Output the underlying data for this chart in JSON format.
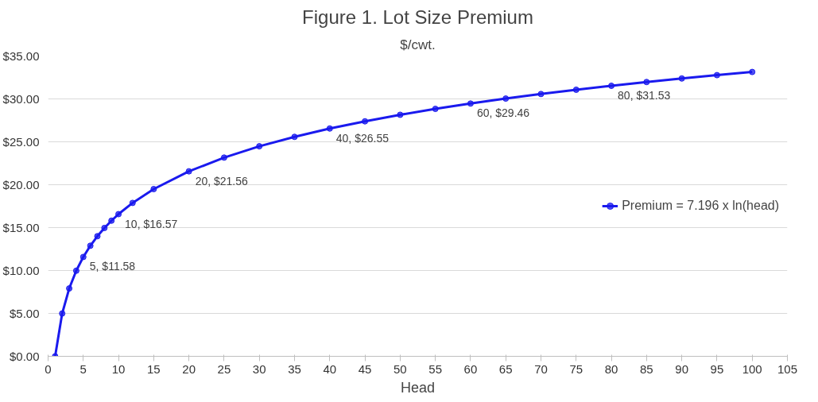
{
  "chart_data": {
    "type": "line",
    "title": "Figure 1. Lot Size Premium",
    "subtitle": "$/cwt.",
    "xlabel": "Head",
    "x": [
      1,
      2,
      3,
      4,
      5,
      6,
      7,
      8,
      9,
      10,
      12,
      15,
      20,
      25,
      30,
      35,
      40,
      45,
      50,
      55,
      60,
      65,
      70,
      75,
      80,
      85,
      90,
      95,
      100
    ],
    "series": [
      {
        "name": "Premium = 7.196 x ln(head)",
        "color": "#1a1aee",
        "values": [
          0,
          4.99,
          7.91,
          9.98,
          11.58,
          12.89,
          14.0,
          14.96,
          15.81,
          16.57,
          17.88,
          19.49,
          21.56,
          23.16,
          24.48,
          25.58,
          26.55,
          27.39,
          28.15,
          28.84,
          29.46,
          30.04,
          30.57,
          31.07,
          31.53,
          31.97,
          32.38,
          32.77,
          33.14
        ],
        "value_labels": [
          null,
          null,
          null,
          null,
          "5, $11.58",
          null,
          null,
          null,
          null,
          "10, $16.57",
          null,
          null,
          "20, $21.56",
          null,
          null,
          null,
          "40, $26.55",
          null,
          null,
          null,
          "60, $29.46",
          null,
          null,
          null,
          "80, $31.53",
          null,
          null,
          null,
          null
        ]
      }
    ],
    "xlim": [
      0,
      105
    ],
    "xticks": [
      0,
      5,
      10,
      15,
      20,
      25,
      30,
      35,
      40,
      45,
      50,
      55,
      60,
      65,
      70,
      75,
      80,
      85,
      90,
      95,
      100,
      105
    ],
    "ylim": [
      0,
      35
    ],
    "yticks": [
      {
        "value": 0,
        "label": "$0.00"
      },
      {
        "value": 5,
        "label": "$5.00"
      },
      {
        "value": 10,
        "label": "$10.00"
      },
      {
        "value": 15,
        "label": "$15.00"
      },
      {
        "value": 20,
        "label": "$20.00"
      },
      {
        "value": 25,
        "label": "$25.00"
      },
      {
        "value": 30,
        "label": "$30.00"
      },
      {
        "value": 35,
        "label": "$35.00"
      }
    ],
    "grid": "y",
    "legend": "right",
    "marker": "circle",
    "line_style": "solid"
  }
}
